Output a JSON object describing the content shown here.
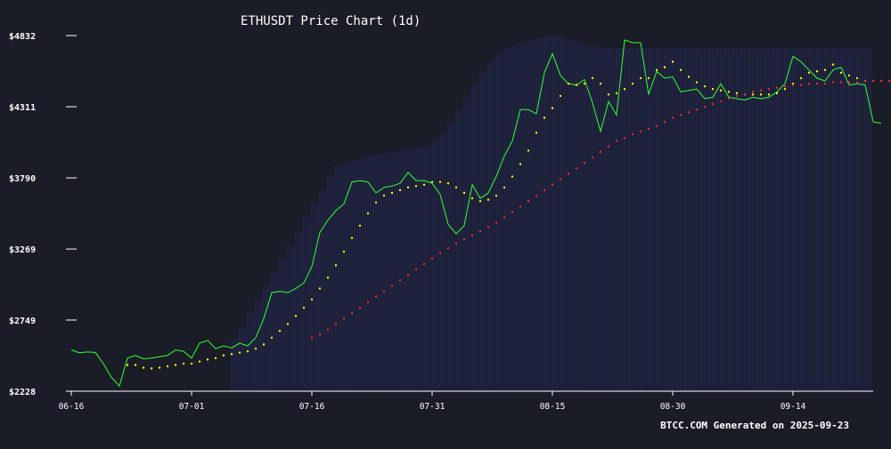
{
  "chart_data": {
    "type": "line",
    "title": "ETHUSDT Price Chart (1d)",
    "footer": "BTCC.COM Generated on 2025-09-23",
    "ylim": [
      2228,
      4832
    ],
    "y_ticks": [
      "$4832",
      "$4311",
      "$3790",
      "$3269",
      "$2749",
      "$2228"
    ],
    "y_tick_values": [
      4832,
      4311,
      3790,
      3269,
      2749,
      2228
    ],
    "x_ticks": [
      "06-16",
      "07-01",
      "07-16",
      "07-31",
      "08-15",
      "08-30",
      "09-14"
    ],
    "x_tick_index": [
      0,
      15,
      30,
      45,
      60,
      75,
      90
    ],
    "x_range": [
      0,
      100
    ],
    "grid": false,
    "colors": {
      "background": "#1a1d27",
      "price": "#33ff33",
      "ma_short": "#ffff00",
      "ma_long": "#ff2a2a",
      "band": "#2a2f7a",
      "axis": "#ffffff"
    },
    "series": [
      {
        "key": "price",
        "style": "line",
        "values": [
          2530,
          2510,
          2515,
          2512,
          2430,
          2330,
          2265,
          2470,
          2490,
          2465,
          2470,
          2480,
          2490,
          2530,
          2520,
          2470,
          2580,
          2600,
          2540,
          2560,
          2545,
          2580,
          2560,
          2620,
          2760,
          2950,
          2960,
          2950,
          2980,
          3020,
          3140,
          3390,
          3480,
          3550,
          3600,
          3760,
          3770,
          3760,
          3680,
          3720,
          3730,
          3750,
          3830,
          3770,
          3770,
          3750,
          3670,
          3450,
          3380,
          3440,
          3740,
          3640,
          3680,
          3800,
          3950,
          4060,
          4290,
          4290,
          4260,
          4560,
          4700,
          4540,
          4480,
          4470,
          4510,
          4340,
          4130,
          4350,
          4250,
          4800,
          4780,
          4780,
          4400,
          4570,
          4520,
          4530,
          4420,
          4430,
          4440,
          4370,
          4380,
          4480,
          4380,
          4370,
          4360,
          4380,
          4370,
          4380,
          4420,
          4480,
          4680,
          4640,
          4580,
          4520,
          4500,
          4580,
          4600,
          4470,
          4480,
          4470,
          4200,
          4190
        ],
        "x_start": 0
      },
      {
        "key": "ma_short",
        "style": "dots",
        "values": [
          2420,
          2420,
          2400,
          2395,
          2400,
          2410,
          2420,
          2430,
          2430,
          2445,
          2460,
          2470,
          2490,
          2500,
          2510,
          2520,
          2540,
          2570,
          2620,
          2670,
          2720,
          2780,
          2840,
          2900,
          2980,
          3060,
          3150,
          3250,
          3350,
          3440,
          3530,
          3610,
          3660,
          3680,
          3700,
          3720,
          3730,
          3740,
          3760,
          3760,
          3750,
          3720,
          3680,
          3640,
          3620,
          3630,
          3660,
          3720,
          3800,
          3890,
          3990,
          4120,
          4230,
          4300,
          4390,
          4480,
          4470,
          4480,
          4520,
          4480,
          4400,
          4410,
          4440,
          4480,
          4520,
          4520,
          4580,
          4600,
          4640,
          4580,
          4530,
          4490,
          4460,
          4440,
          4430,
          4420,
          4410,
          4400,
          4400,
          4400,
          4400,
          4410,
          4440,
          4480,
          4520,
          4560,
          4570,
          4580,
          4620,
          4560,
          4540,
          4520,
          4500
        ],
        "x_start": 7
      },
      {
        "key": "ma_long",
        "style": "dots",
        "values": [
          2620,
          2645,
          2680,
          2720,
          2760,
          2800,
          2840,
          2880,
          2920,
          2960,
          3000,
          3040,
          3080,
          3120,
          3160,
          3200,
          3240,
          3275,
          3310,
          3340,
          3370,
          3400,
          3430,
          3460,
          3500,
          3540,
          3580,
          3620,
          3660,
          3700,
          3740,
          3780,
          3820,
          3860,
          3900,
          3940,
          3980,
          4020,
          4060,
          4080,
          4110,
          4130,
          4150,
          4170,
          4200,
          4230,
          4250,
          4270,
          4290,
          4310,
          4330,
          4350,
          4370,
          4390,
          4400,
          4420,
          4430,
          4440,
          4450,
          4460,
          4470,
          4470,
          4480,
          4480,
          4480,
          4490,
          4490,
          4490,
          4490,
          4500,
          4500,
          4500,
          4500,
          4500
        ],
        "x_start": 30
      }
    ],
    "band": {
      "x_start": 20,
      "upper": [
        2600,
        2700,
        2800,
        2900,
        3000,
        3100,
        3200,
        3300,
        3400,
        3500,
        3600,
        3700,
        3800,
        3880,
        3900,
        3920,
        3930,
        3950,
        3960,
        3970,
        3980,
        3990,
        4000,
        4010,
        4020,
        4060,
        4120,
        4200,
        4290,
        4380,
        4470,
        4560,
        4640,
        4700,
        4740,
        4760,
        4780,
        4800,
        4820,
        4830,
        4832,
        4830,
        4800,
        4780,
        4760,
        4750,
        4740,
        4740,
        4740,
        4740,
        4740,
        4740,
        4740,
        4740,
        4740,
        4740,
        4740,
        4740,
        4740,
        4740,
        4740,
        4740,
        4740,
        4740,
        4740,
        4740,
        4740,
        4740,
        4740,
        4740,
        4740,
        4740,
        4740,
        4740,
        4740,
        4740,
        4740,
        4740,
        4740,
        4740
      ],
      "lower": [
        2228,
        2228,
        2228,
        2228,
        2228,
        2228,
        2228,
        2228,
        2228,
        2228,
        2228,
        2228,
        2228,
        2228,
        2228,
        2228,
        2228,
        2228,
        2228,
        2228,
        2228,
        2228,
        2228,
        2228,
        2228,
        2228,
        2228,
        2228,
        2228,
        2228,
        2228,
        2228,
        2228,
        2228,
        2228,
        2228,
        2228,
        2228,
        2228,
        2228,
        2228,
        2228,
        2228,
        2228,
        2228,
        2228,
        2228,
        2228,
        2228,
        2228,
        2228,
        2228,
        2228,
        2228,
        2228,
        2228,
        2228,
        2228,
        2228,
        2228,
        2228,
        2228,
        2228,
        2228,
        2228,
        2228,
        2228,
        2228,
        2228,
        2228,
        2228,
        2228,
        2228,
        2228,
        2228,
        2228,
        2228,
        2228,
        2228,
        2228
      ]
    }
  }
}
